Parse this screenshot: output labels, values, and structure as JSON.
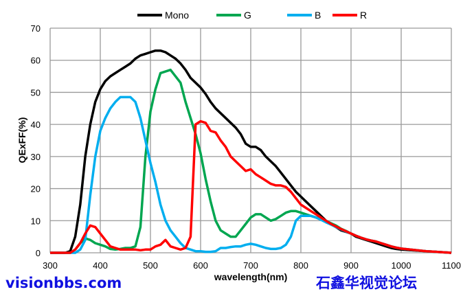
{
  "chart_data": {
    "type": "line",
    "title": "",
    "xlabel": "wavelength(nm)",
    "ylabel": "QExFF(%)",
    "xlim": [
      300,
      1100
    ],
    "ylim": [
      0,
      70
    ],
    "xticks": [
      300,
      400,
      500,
      600,
      700,
      800,
      900,
      1000,
      1100
    ],
    "yticks": [
      0,
      10,
      20,
      30,
      40,
      50,
      60,
      70
    ],
    "grid": true,
    "legend": "top",
    "x": [
      300,
      310,
      320,
      330,
      340,
      350,
      360,
      370,
      380,
      390,
      400,
      410,
      420,
      430,
      440,
      450,
      460,
      470,
      480,
      490,
      500,
      510,
      520,
      530,
      540,
      550,
      560,
      570,
      580,
      590,
      600,
      610,
      620,
      630,
      640,
      650,
      660,
      670,
      680,
      690,
      700,
      710,
      720,
      730,
      740,
      750,
      760,
      770,
      780,
      790,
      800,
      810,
      820,
      830,
      840,
      850,
      860,
      870,
      880,
      890,
      900,
      910,
      920,
      930,
      940,
      950,
      960,
      970,
      980,
      990,
      1000,
      1050,
      1100
    ],
    "series": [
      {
        "name": "Mono",
        "color": "#000000",
        "values": [
          0,
          0,
          0,
          0,
          0.5,
          5,
          15,
          30,
          40,
          47,
          51,
          53.5,
          55,
          56,
          57,
          58,
          59,
          60.5,
          61.5,
          62,
          62.5,
          63,
          63,
          62.5,
          61.5,
          60.5,
          59,
          57,
          54.5,
          53,
          51.5,
          49.5,
          47,
          45,
          43.5,
          42,
          40.5,
          39,
          37,
          34,
          33,
          33,
          32,
          30,
          28.5,
          27,
          25,
          23,
          21,
          19,
          17.5,
          16,
          14.5,
          13,
          11.5,
          10,
          9,
          8,
          7,
          6.5,
          6,
          5,
          4.5,
          4,
          3.5,
          3,
          2.5,
          2,
          1.5,
          1.2,
          1,
          0.5,
          0
        ]
      },
      {
        "name": "G",
        "color": "#00a650",
        "values": [
          0,
          0,
          0,
          0,
          0,
          1,
          3,
          4.5,
          4,
          3,
          2.5,
          2,
          1.2,
          1,
          1.2,
          1.5,
          1.5,
          2,
          8,
          30,
          44,
          51,
          56,
          56.5,
          57,
          55,
          53,
          47,
          42,
          37,
          31,
          23,
          16,
          10,
          7,
          6,
          5,
          5,
          7,
          9,
          11,
          12,
          12,
          11,
          10,
          10.5,
          11.5,
          12.5,
          13,
          13,
          12.5,
          12,
          11.5,
          11,
          10.5,
          10,
          9.2,
          8.5,
          7.5,
          6.8,
          6,
          5.3,
          4.7,
          4.2,
          3.8,
          3.5,
          3,
          2.5,
          2,
          1.6,
          1.3,
          0.5,
          0
        ]
      },
      {
        "name": "B",
        "color": "#00aeef",
        "values": [
          0,
          0,
          0,
          0,
          0,
          0,
          1,
          4,
          18,
          30,
          38,
          42,
          45,
          47,
          48.5,
          48.5,
          48.5,
          47,
          42,
          35,
          28,
          22,
          15,
          10,
          7,
          5,
          3,
          1.5,
          1,
          0.5,
          0.5,
          0.3,
          0.3,
          0.5,
          1.5,
          1.5,
          1.8,
          2,
          2,
          2.5,
          2.8,
          2.5,
          2,
          1.5,
          1.2,
          1.2,
          1.5,
          2.5,
          5,
          10,
          11.5,
          11.5,
          11.5,
          11,
          10.3,
          9.5,
          8.8,
          8,
          7.3,
          6.6,
          6,
          5.3,
          4.7,
          4.2,
          3.8,
          3.5,
          3,
          2.5,
          2,
          1.6,
          1.3,
          0.5,
          0
        ]
      },
      {
        "name": "R",
        "color": "#ff0000",
        "values": [
          0,
          0,
          0,
          0,
          0,
          1,
          3,
          6,
          8.5,
          8,
          6,
          4,
          2,
          1.5,
          1,
          1,
          1,
          1,
          0.8,
          1,
          1,
          2,
          2.5,
          4,
          2,
          1.5,
          1,
          1.5,
          5,
          40,
          41,
          40.5,
          38,
          37.5,
          35,
          33,
          30,
          28.5,
          27,
          25.5,
          26,
          24.5,
          23.5,
          22.5,
          21.5,
          21,
          21,
          20.5,
          19,
          17,
          15,
          14,
          13,
          12,
          11,
          10,
          9,
          8.2,
          7.4,
          6.7,
          6,
          5.3,
          4.7,
          4.2,
          3.8,
          3.5,
          3,
          2.5,
          2,
          1.6,
          1.3,
          0.5,
          0
        ]
      }
    ]
  },
  "watermark": {
    "line1": "石鑫华视觉论坛",
    "line2": "visionbbs.com"
  }
}
